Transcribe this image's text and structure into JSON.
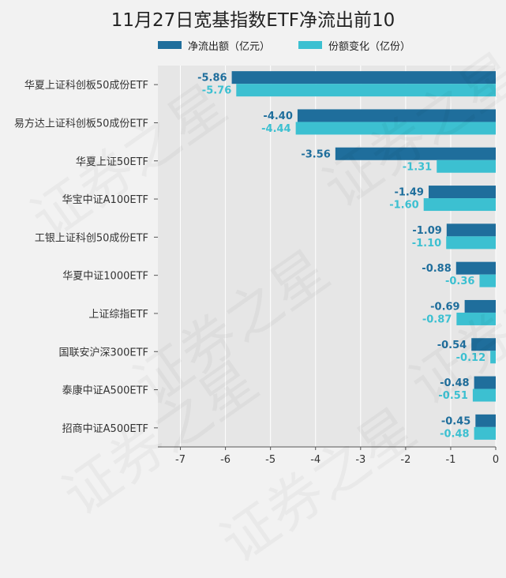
{
  "colors": {
    "net_outflow": "#1f6e9c",
    "share_change": "#3cc0d1",
    "background": "#f2f2f2",
    "plot_bg": "#e6e6e6"
  },
  "watermark": "证券之星",
  "chart_data": {
    "type": "bar",
    "orientation": "horizontal",
    "title": "11月27日宽基指数ETF净流出前10",
    "categories": [
      "华夏上证科创板50成份ETF",
      "易方达上证科创板50成份ETF",
      "华夏上证50ETF",
      "华宝中证A100ETF",
      "工银上证科创50成份ETF",
      "华夏中证1000ETF",
      "上证综指ETF",
      "国联安沪深300ETF",
      "泰康中证A500ETF",
      "招商中证A500ETF"
    ],
    "series": [
      {
        "name": "净流出额（亿元）",
        "values": [
          -5.86,
          -4.4,
          -3.56,
          -1.49,
          -1.09,
          -0.88,
          -0.69,
          -0.54,
          -0.48,
          -0.45
        ],
        "labels": [
          "-5.86",
          "-4.40",
          "-3.56",
          "-1.49",
          "-1.09",
          "-0.88",
          "-0.69",
          "-0.54",
          "-0.48",
          "-0.45"
        ]
      },
      {
        "name": "份额变化（亿份）",
        "values": [
          -5.76,
          -4.44,
          -1.31,
          -1.6,
          -1.1,
          -0.36,
          -0.87,
          -0.12,
          -0.51,
          -0.48
        ],
        "labels": [
          "-5.76",
          "-4.44",
          "-1.31",
          "-1.60",
          "-1.10",
          "-0.36",
          "-0.87",
          "-0.12",
          "-0.51",
          "-0.48"
        ]
      }
    ],
    "xlim": [
      -7.5,
      0
    ],
    "xticks": [
      -7,
      -6,
      -5,
      -4,
      -3,
      -2,
      -1,
      0
    ],
    "xtick_labels": [
      "-7",
      "-6",
      "-5",
      "-4",
      "-3",
      "-2",
      "-1",
      "0"
    ],
    "grid": true,
    "legend_position": "top"
  }
}
